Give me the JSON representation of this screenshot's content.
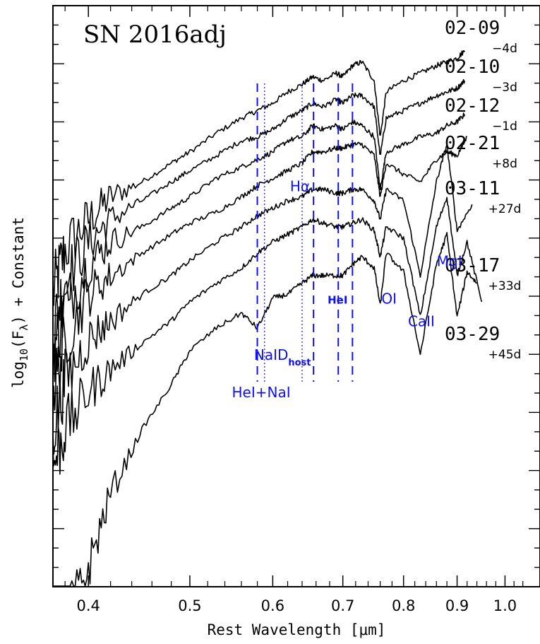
{
  "chart_data": {
    "type": "line",
    "title": "SN 2016adj",
    "xlabel": "Rest Wavelength [μm]",
    "ylabel_parts": {
      "main": "log",
      "sub1": "10",
      "open": "(F",
      "sub2": "λ",
      "close": ") + Constant"
    },
    "xlim": [
      0.37,
      1.08
    ],
    "x_scale": "log",
    "x_ticks": [
      {
        "value": 0.4,
        "label": "0.4"
      },
      {
        "value": 0.5,
        "label": "0.5"
      },
      {
        "value": 0.6,
        "label": "0.6"
      },
      {
        "value": 0.7,
        "label": "0.7"
      },
      {
        "value": 0.8,
        "label": "0.8"
      },
      {
        "value": 0.9,
        "label": "0.9"
      },
      {
        "value": 1.0,
        "label": "1.0"
      }
    ],
    "y_tick_labels_shown": false,
    "series": [
      {
        "name": "02-09",
        "phase": "−4d",
        "x": [
          0.37,
          0.38,
          0.4,
          0.42,
          0.45,
          0.48,
          0.5,
          0.53,
          0.56,
          0.58,
          0.6,
          0.62,
          0.64,
          0.655,
          0.67,
          0.69,
          0.7,
          0.715,
          0.73,
          0.75,
          0.76,
          0.77,
          0.8,
          0.83,
          0.86,
          0.88,
          0.9,
          0.915
        ],
        "y": [
          1.8,
          3.0,
          3.8,
          4.4,
          4.8,
          5.3,
          5.6,
          6.1,
          6.5,
          6.7,
          6.9,
          7.2,
          7.4,
          7.6,
          7.5,
          7.7,
          7.6,
          7.9,
          8.0,
          7.5,
          6.0,
          7.2,
          7.5,
          7.7,
          7.9,
          8.0,
          8.1,
          8.3
        ]
      },
      {
        "name": "02-10",
        "phase": "−3d",
        "x": [
          0.37,
          0.38,
          0.4,
          0.42,
          0.45,
          0.48,
          0.5,
          0.53,
          0.56,
          0.58,
          0.6,
          0.62,
          0.64,
          0.655,
          0.67,
          0.69,
          0.7,
          0.715,
          0.73,
          0.75,
          0.76,
          0.77,
          0.8,
          0.83,
          0.86,
          0.88,
          0.9,
          0.915
        ],
        "y": [
          0.8,
          2.2,
          3.2,
          3.8,
          4.3,
          4.8,
          5.1,
          5.5,
          5.9,
          6.0,
          6.2,
          6.5,
          6.7,
          6.9,
          6.8,
          7.0,
          6.9,
          7.1,
          7.1,
          6.8,
          5.5,
          6.5,
          6.7,
          6.9,
          7.1,
          7.2,
          7.3,
          7.5
        ]
      },
      {
        "name": "02-12",
        "phase": "−1d",
        "x": [
          0.37,
          0.38,
          0.4,
          0.42,
          0.45,
          0.48,
          0.5,
          0.53,
          0.56,
          0.58,
          0.6,
          0.62,
          0.64,
          0.655,
          0.67,
          0.69,
          0.7,
          0.715,
          0.73,
          0.75,
          0.76,
          0.77,
          0.8,
          0.83,
          0.86,
          0.88,
          0.9,
          0.915
        ],
        "y": [
          0.2,
          1.5,
          2.6,
          3.2,
          3.6,
          4.1,
          4.4,
          4.9,
          5.2,
          5.4,
          5.6,
          5.9,
          6.0,
          6.3,
          6.2,
          6.3,
          6.2,
          6.4,
          6.3,
          6.0,
          4.6,
          5.6,
          5.8,
          6.0,
          6.1,
          6.3,
          6.4,
          6.6
        ]
      },
      {
        "name": "02-21",
        "phase": "+8d",
        "x": [
          0.37,
          0.38,
          0.4,
          0.42,
          0.45,
          0.48,
          0.5,
          0.53,
          0.56,
          0.58,
          0.6,
          0.62,
          0.64,
          0.655,
          0.67,
          0.69,
          0.7,
          0.715,
          0.73,
          0.75,
          0.76,
          0.77,
          0.8,
          0.83,
          0.86,
          0.88,
          0.9,
          0.92
        ],
        "y": [
          -0.8,
          0.6,
          1.8,
          2.3,
          2.9,
          3.4,
          3.7,
          4.0,
          4.4,
          4.7,
          4.9,
          5.1,
          5.3,
          5.6,
          5.6,
          5.7,
          5.7,
          5.8,
          5.8,
          5.5,
          4.4,
          5.3,
          5.0,
          4.8,
          5.4,
          5.6,
          5.5,
          6.0
        ]
      },
      {
        "name": "03-11",
        "phase": "+27d",
        "x": [
          0.37,
          0.38,
          0.4,
          0.42,
          0.45,
          0.48,
          0.5,
          0.53,
          0.56,
          0.58,
          0.6,
          0.62,
          0.64,
          0.655,
          0.67,
          0.69,
          0.7,
          0.715,
          0.73,
          0.75,
          0.76,
          0.77,
          0.8,
          0.83,
          0.86,
          0.88,
          0.9,
          0.93
        ],
        "y": [
          -1.8,
          -0.5,
          0.6,
          1.1,
          1.8,
          2.3,
          2.7,
          3.2,
          3.6,
          3.9,
          4.1,
          4.3,
          4.4,
          4.6,
          4.6,
          4.5,
          4.5,
          4.6,
          4.6,
          4.3,
          3.8,
          4.6,
          4.3,
          2.3,
          4.8,
          5.8,
          3.5,
          4.2
        ]
      },
      {
        "name": "03-17",
        "phase": "+33d",
        "x": [
          0.37,
          0.38,
          0.4,
          0.42,
          0.45,
          0.48,
          0.5,
          0.53,
          0.56,
          0.58,
          0.6,
          0.62,
          0.64,
          0.655,
          0.67,
          0.69,
          0.7,
          0.715,
          0.73,
          0.75,
          0.76,
          0.77,
          0.8,
          0.83,
          0.86,
          0.88,
          0.9,
          0.92,
          0.95
        ],
        "y": [
          -2.8,
          -1.8,
          -0.8,
          -0.2,
          0.5,
          1.1,
          1.6,
          2.1,
          2.5,
          2.9,
          3.2,
          3.4,
          3.6,
          3.8,
          3.7,
          3.6,
          3.6,
          3.7,
          3.8,
          3.5,
          2.8,
          3.6,
          3.3,
          1.2,
          3.6,
          4.4,
          2.3,
          3.2,
          1.6
        ]
      },
      {
        "name": "03-29",
        "phase": "+45d",
        "x": [
          0.37,
          0.38,
          0.4,
          0.42,
          0.45,
          0.48,
          0.5,
          0.53,
          0.56,
          0.58,
          0.6,
          0.62,
          0.64,
          0.655,
          0.67,
          0.69,
          0.7,
          0.715,
          0.73,
          0.75,
          0.76,
          0.77,
          0.8,
          0.83,
          0.86,
          0.88,
          0.9,
          0.92,
          0.94
        ],
        "y": [
          -8.0,
          -7.0,
          -5.5,
          -3.5,
          -1.8,
          -0.6,
          0.3,
          0.9,
          1.3,
          0.9,
          1.7,
          1.8,
          2.1,
          2.3,
          2.3,
          2.3,
          2.3,
          2.6,
          2.8,
          2.5,
          1.5,
          2.9,
          2.4,
          0.2,
          2.6,
          3.4,
          1.2,
          2.4,
          2.1
        ]
      }
    ],
    "line_markers": [
      {
        "x": 0.58,
        "style": "dashed"
      },
      {
        "x": 0.5893,
        "style": "dotted"
      },
      {
        "x": 0.64,
        "style": "dotted"
      },
      {
        "x": 0.6563,
        "style": "dashed"
      },
      {
        "x": 0.693,
        "style": "dashed"
      },
      {
        "x": 0.715,
        "style": "dashed"
      }
    ],
    "line_labels": [
      {
        "text": "Hα",
        "x": 0.637,
        "y": 4.55
      },
      {
        "text": "HeI",
        "x": 0.692,
        "y": 1.55,
        "small": true
      },
      {
        "text": "OI",
        "x": 0.775,
        "y": 1.55
      },
      {
        "text": "CaII",
        "x": 0.832,
        "y": 0.95
      },
      {
        "text": "MgI",
        "x": 0.885,
        "y": 2.55
      },
      {
        "text": "NaID",
        "sub": "host",
        "x": 0.613,
        "y": 0.05
      },
      {
        "text": "HeI+NaI",
        "x": 0.585,
        "y": -0.95
      }
    ],
    "colors": {
      "spectra": "#000000",
      "markers": "#1010ee",
      "labels": "#1010ee"
    }
  }
}
